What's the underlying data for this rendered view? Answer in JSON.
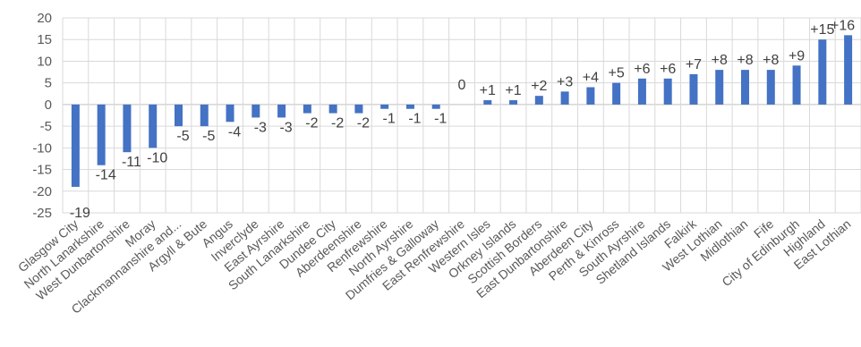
{
  "chart_data": {
    "type": "bar",
    "title": "",
    "xlabel": "",
    "ylabel": "",
    "ylim": [
      -25,
      20
    ],
    "y_ticks": [
      20,
      15,
      10,
      5,
      0,
      -5,
      -10,
      -15,
      -20,
      -25
    ],
    "grid": true,
    "bar_color": "#4472c4",
    "categories": [
      "Glasgow City",
      "North Lanarkshire",
      "West Dunbartonshire",
      "Moray",
      "Clackmannanshire and...",
      "Argyll & Bute",
      "Angus",
      "Inverclyde",
      "East Ayrshire",
      "South Lanarkshire",
      "Dundee City",
      "Aberdeenshire",
      "Renfrewshire",
      "North Ayrshire",
      "Dumfries & Galloway",
      "East Renfrewshire",
      "Western Isles",
      "Orkney Islands",
      "Scottish Borders",
      "East Dunbartonshire",
      "Aberdeen City",
      "Perth & Kinross",
      "South Ayrshire",
      "Shetland Islands",
      "Falkirk",
      "West Lothian",
      "Midlothian",
      "Fife",
      "City of Edinburgh",
      "Highland",
      "East Lothian"
    ],
    "values": [
      -19,
      -14,
      -11,
      -10,
      -5,
      -5,
      -4,
      -3,
      -3,
      -2,
      -2,
      -2,
      -1,
      -1,
      -1,
      0,
      1,
      1,
      2,
      3,
      4,
      5,
      6,
      6,
      7,
      8,
      8,
      8,
      9,
      15,
      16
    ],
    "data_labels": [
      "-19",
      "-14",
      "-11",
      "-10",
      "-5",
      "-5",
      "-4",
      "-3",
      "-3",
      "-2",
      "-2",
      "-2",
      "-1",
      "-1",
      "-1",
      "0",
      "+1",
      "+1",
      "+2",
      "+3",
      "+4",
      "+5",
      "+6",
      "+6",
      "+7",
      "+8",
      "+8",
      "+8",
      "+9",
      "+15",
      "+16"
    ]
  }
}
